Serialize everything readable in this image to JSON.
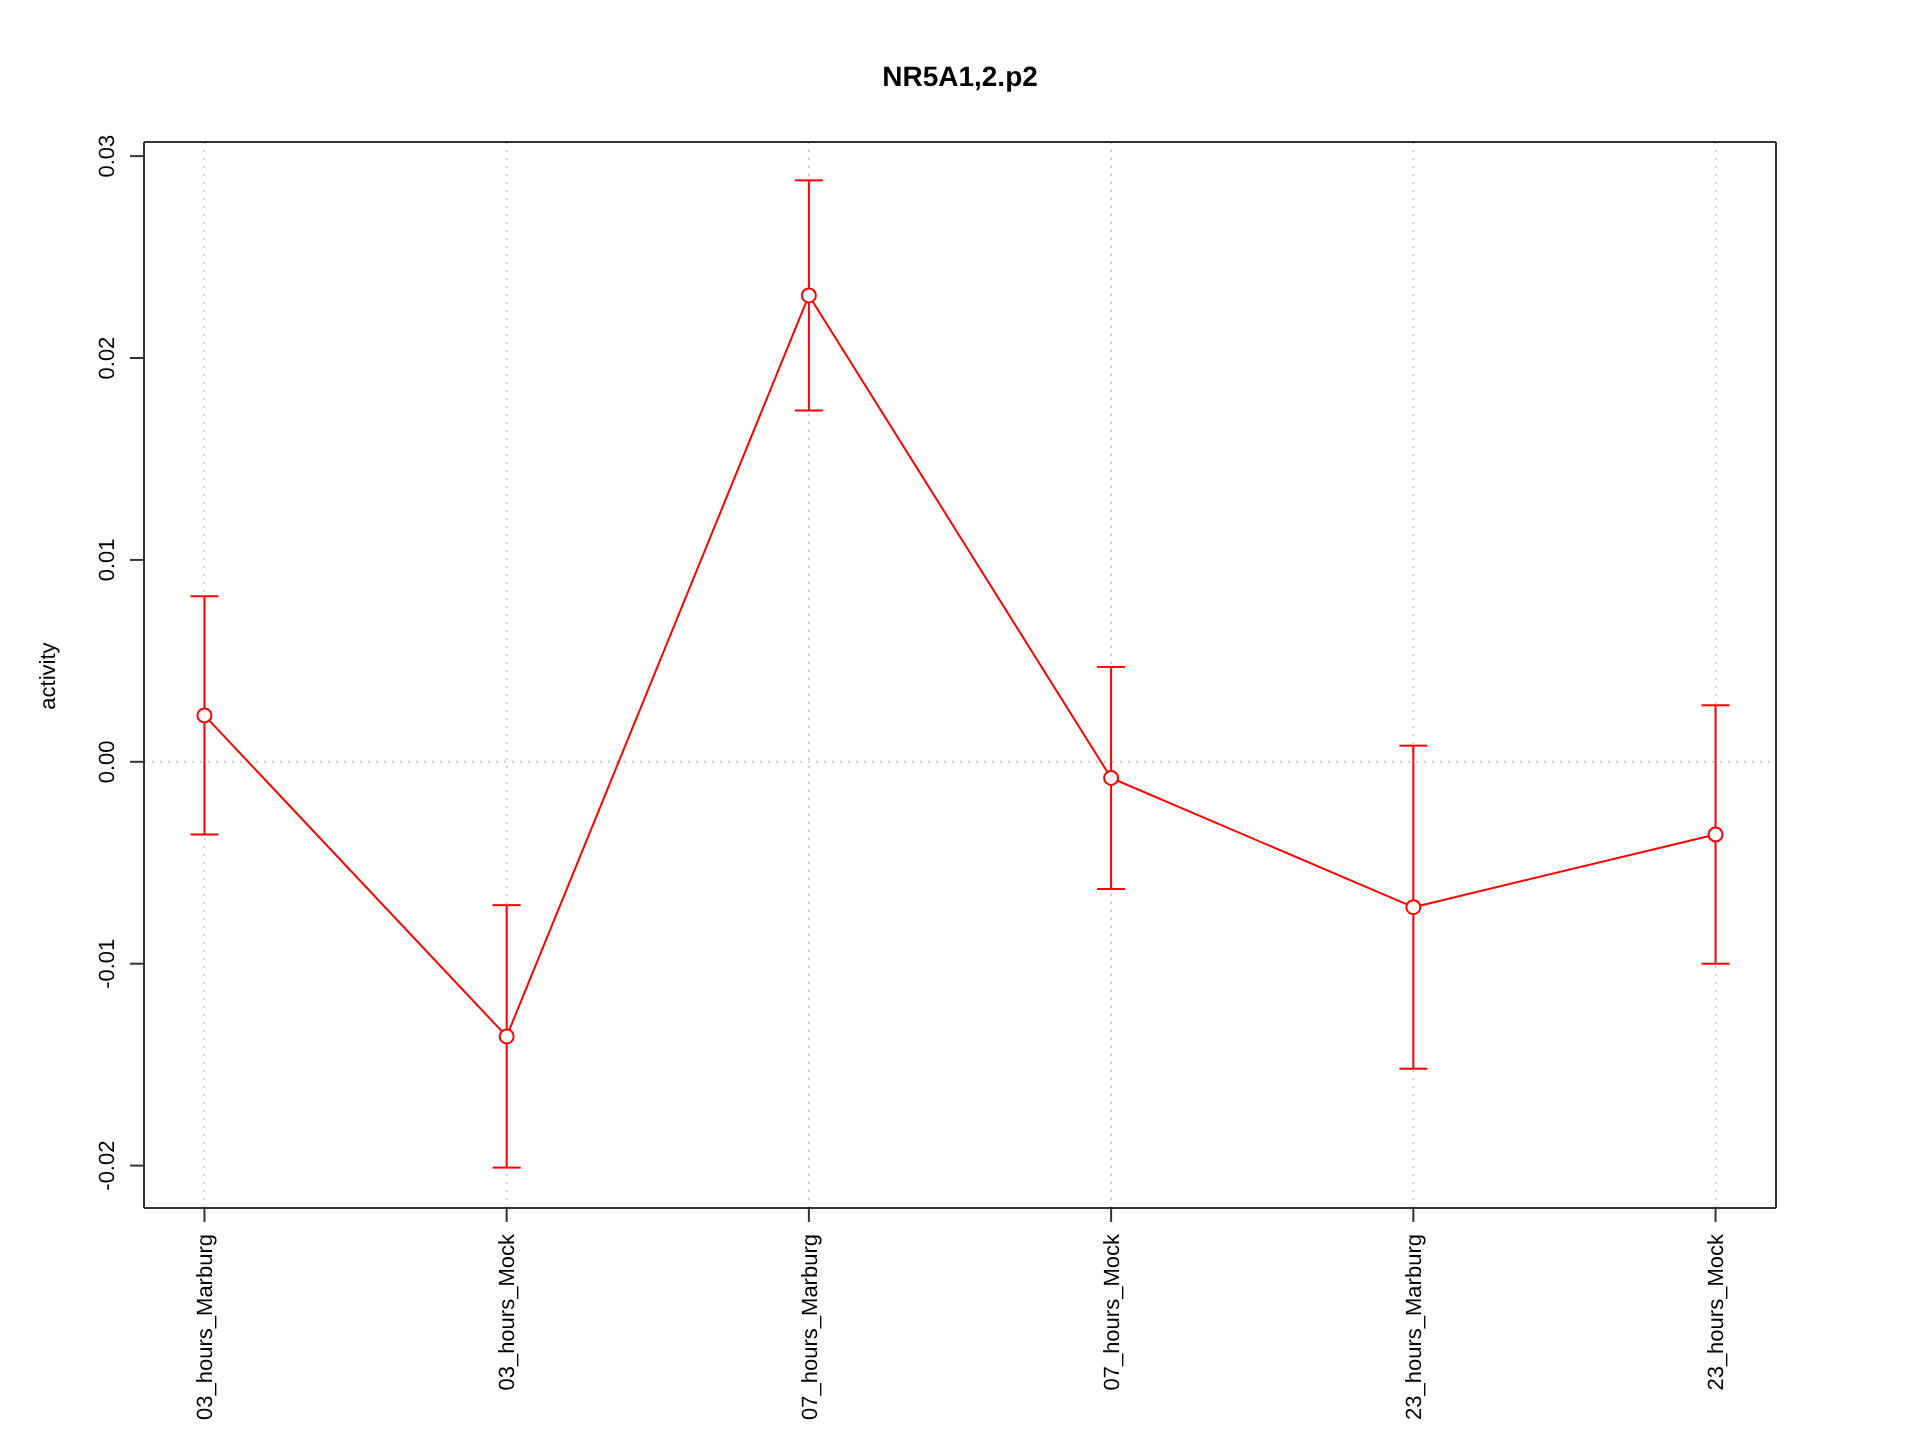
{
  "chart_data": {
    "type": "line",
    "title": "NR5A1,2.p2",
    "ylabel": "activity",
    "categories": [
      "03_hours_Marburg",
      "03_hours_Mock",
      "07_hours_Marburg",
      "07_hours_Mock",
      "23_hours_Marburg",
      "23_hours_Mock"
    ],
    "values": [
      0.0023,
      -0.0136,
      0.0231,
      -0.0008,
      -0.0072,
      -0.0036
    ],
    "errors": [
      0.0059,
      0.0065,
      0.0057,
      0.0055,
      0.008,
      0.0064
    ],
    "color": "#ff0000",
    "marker": "circle",
    "ylim": [
      -0.0221,
      0.0307
    ],
    "yticks": [
      -0.02,
      -0.01,
      {
        "value": 0,
        "label": "0.00"
      },
      0.01,
      0.02,
      0.03
    ],
    "grid": "x",
    "ref_lines": [
      {
        "axis": "y",
        "value": 0,
        "color": "#cccccc",
        "line_style": "dotted"
      }
    ]
  }
}
